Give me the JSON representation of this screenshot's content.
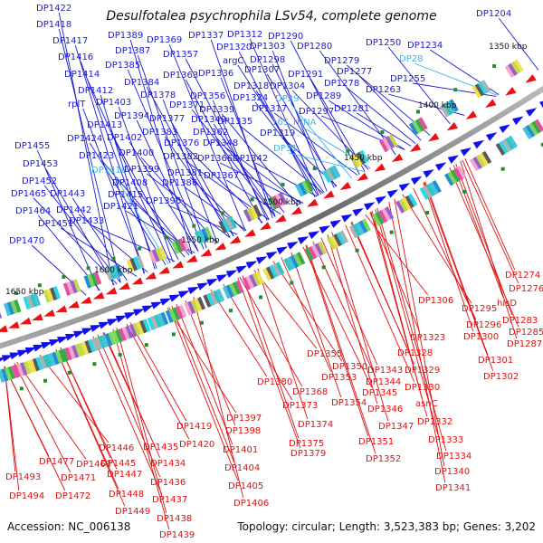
{
  "title": "Desulfotalea psychrophila LSv54, complete genome",
  "footer": {
    "accession": "Accession: NC_006138",
    "topology": "Topology: circular; Length: 3,523,383 bp; Genes: 3,202"
  },
  "ticks": [
    "1350 kbp",
    "1400 kbp",
    "1450 kbp",
    "1500 kbp",
    "1550 kbp",
    "1600 kbp",
    "1650 kbp"
  ],
  "colors": {
    "forward_label": "#1a1ad6",
    "cyan_label": "#35b8ea",
    "reverse_label": "#e11111",
    "backbone": "#7a7a7a",
    "forward_arrow": "#1010ee",
    "reverse_arrow": "#ee1010"
  },
  "labels_top": [
    "DP1422",
    "DP1418",
    "DP1417",
    "DP1416",
    "DP1414",
    "DP1412",
    "rplT",
    "DP1413",
    "DP1424",
    "DP1423",
    "DP1410",
    "DP1455",
    "DP1453",
    "DP1452",
    "DP1465",
    "DP1443",
    "DP1464",
    "DP1442",
    "DP1451",
    "DP1433",
    "DP1470",
    "DP1389",
    "DP1387",
    "DP1385",
    "DP1384",
    "DP1403",
    "DP1394",
    "DP1402",
    "DP1400",
    "DP1399",
    "DP1408",
    "DP1415",
    "DP1421",
    "DP1369",
    "DP1357",
    "DP1378",
    "DP1377",
    "DP1383",
    "DP1376",
    "DP1382",
    "DP1381",
    "DP1386",
    "DP1396",
    "DP1363",
    "DP1371",
    "DP1356",
    "DP1349",
    "DP1362",
    "DP1348",
    "DP1366",
    "DP1367",
    "DP1337",
    "DP1312",
    "DP1320",
    "argC",
    "DP1336",
    "DP1318",
    "DP1324",
    "DP1339",
    "DP1335",
    "DP1303",
    "DP1298",
    "DP1307",
    "DP1304",
    "DP1317",
    "DP1319",
    "DP1342",
    "DP1290",
    "DP1280",
    "DP1279",
    "DP1291",
    "DP1277",
    "DP1278",
    "DP1289",
    "DP1297",
    "DP1281",
    "DP1250",
    "DP1234",
    "DP1263",
    "DP1255",
    "DP1204",
    "DP29",
    "16S_rRNA",
    "DP31",
    "DP28"
  ],
  "labels_bottom": [
    "DP1274",
    "DP1276",
    "DP1306",
    "DP1295",
    "hisD",
    "DP1283",
    "DP1296",
    "DP1285",
    "DP1300",
    "DP1287",
    "DP1301",
    "DP1302",
    "DP1323",
    "DP1328",
    "DP1329",
    "DP1330",
    "asnC",
    "DP1332",
    "DP1333",
    "DP1334",
    "DP1340",
    "DP1341",
    "DP1355",
    "DP1350",
    "DP1353",
    "DP1343",
    "DP1344",
    "DP1345",
    "DP1346",
    "DP1347",
    "DP1351",
    "DP1352",
    "DP1354",
    "DP1380",
    "DP1368",
    "DP1373",
    "DP1374",
    "DP1375",
    "DP1379",
    "DP1397",
    "DP1398",
    "DP1401",
    "DP1404",
    "DP1405",
    "DP1406",
    "DP1419",
    "DP1420",
    "DP1446",
    "DP1445",
    "DP1447",
    "DP1448",
    "DP1449",
    "DP1435",
    "DP1434",
    "DP1436",
    "DP1437",
    "DP1438",
    "DP1439",
    "DP1493",
    "DP1494",
    "DP1477",
    "DP1471",
    "DP1472",
    "DP1463"
  ]
}
